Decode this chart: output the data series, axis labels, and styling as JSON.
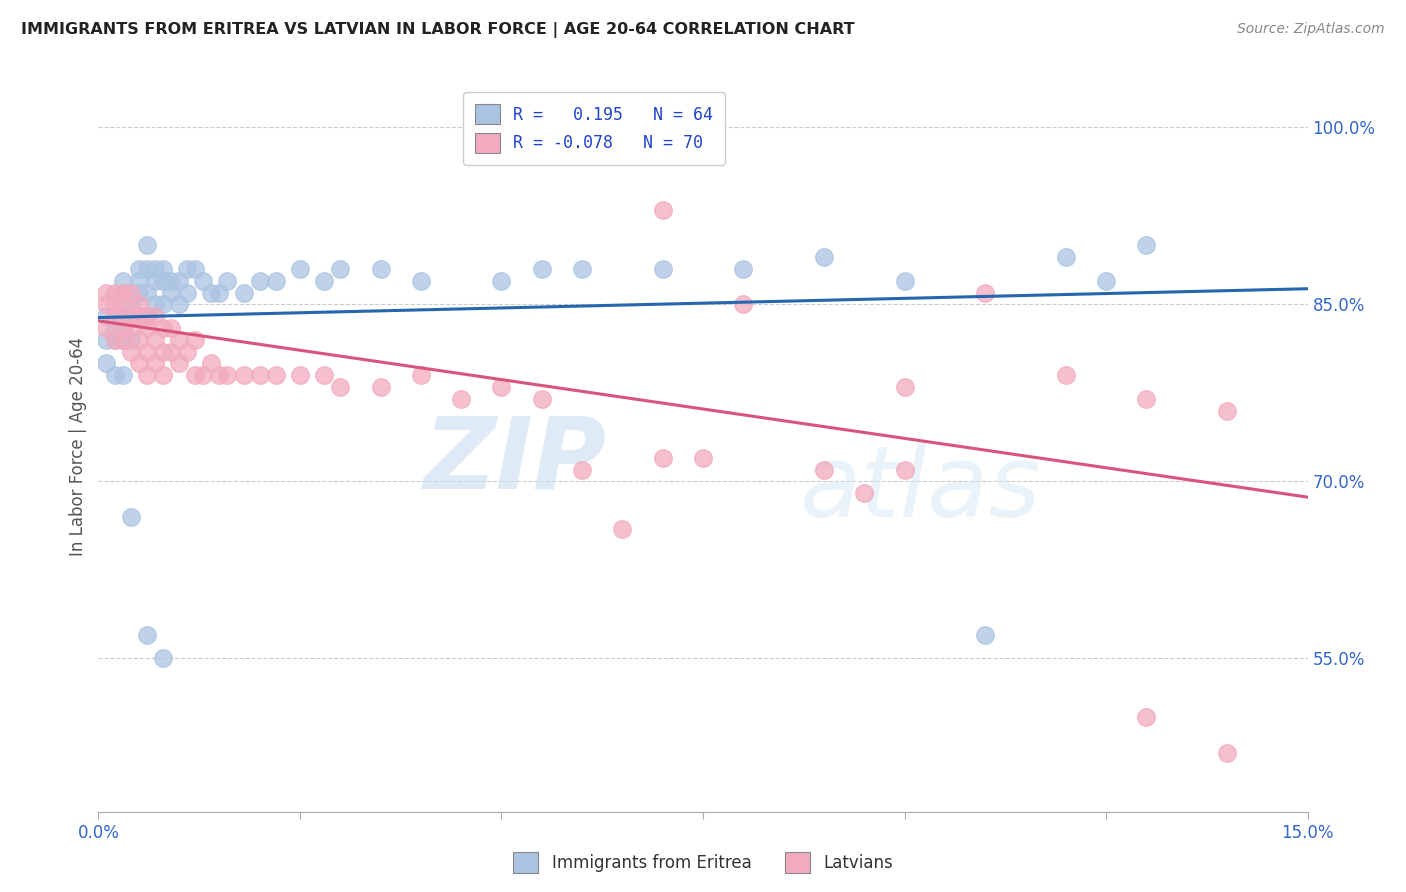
{
  "title": "IMMIGRANTS FROM ERITREA VS LATVIAN IN LABOR FORCE | AGE 20-64 CORRELATION CHART",
  "source": "Source: ZipAtlas.com",
  "ylabel": "In Labor Force | Age 20-64",
  "yticks_labels": [
    "100.0%",
    "85.0%",
    "70.0%",
    "55.0%"
  ],
  "ytick_vals": [
    1.0,
    0.85,
    0.7,
    0.55
  ],
  "xlim": [
    0.0,
    0.15
  ],
  "ylim": [
    0.42,
    1.04
  ],
  "R_eritrea": 0.195,
  "N_eritrea": 64,
  "R_latvian": -0.078,
  "N_latvian": 70,
  "color_eritrea": "#aac4e2",
  "color_latvian": "#f2aabe",
  "line_color_eritrea": "#2666b0",
  "line_color_latvian": "#d9547a",
  "watermark_zip": "ZIP",
  "watermark_atlas": "atlas",
  "legend_label_e": "R =   0.195   N = 64",
  "legend_label_l": "R = -0.078   N = 70",
  "bottom_label_e": "Immigrants from Eritrea",
  "bottom_label_l": "Latvians",
  "xtick_positions": [
    0.0,
    0.025,
    0.05,
    0.075,
    0.1,
    0.125,
    0.15
  ],
  "xtick_labels": [
    "0.0%",
    "",
    "",
    "",
    "",
    "",
    "15.0%"
  ],
  "eritrea_x": [
    0.001,
    0.001,
    0.002,
    0.002,
    0.002,
    0.003,
    0.003,
    0.003,
    0.003,
    0.003,
    0.004,
    0.004,
    0.004,
    0.004,
    0.005,
    0.005,
    0.005,
    0.005,
    0.006,
    0.006,
    0.006,
    0.006,
    0.007,
    0.007,
    0.007,
    0.008,
    0.008,
    0.008,
    0.009,
    0.009,
    0.01,
    0.01,
    0.011,
    0.011,
    0.012,
    0.013,
    0.014,
    0.015,
    0.016,
    0.018,
    0.02,
    0.022,
    0.025,
    0.028,
    0.03,
    0.035,
    0.04,
    0.05,
    0.055,
    0.06,
    0.07,
    0.08,
    0.09,
    0.1,
    0.11,
    0.12,
    0.13,
    0.125,
    0.001,
    0.002,
    0.003,
    0.004,
    0.006,
    0.008
  ],
  "eritrea_y": [
    0.84,
    0.82,
    0.84,
    0.83,
    0.82,
    0.87,
    0.86,
    0.84,
    0.83,
    0.82,
    0.86,
    0.85,
    0.84,
    0.82,
    0.88,
    0.87,
    0.86,
    0.84,
    0.9,
    0.88,
    0.86,
    0.84,
    0.88,
    0.87,
    0.85,
    0.88,
    0.87,
    0.85,
    0.87,
    0.86,
    0.87,
    0.85,
    0.88,
    0.86,
    0.88,
    0.87,
    0.86,
    0.86,
    0.87,
    0.86,
    0.87,
    0.87,
    0.88,
    0.87,
    0.88,
    0.88,
    0.87,
    0.87,
    0.88,
    0.88,
    0.88,
    0.88,
    0.89,
    0.87,
    0.57,
    0.89,
    0.9,
    0.87,
    0.8,
    0.79,
    0.79,
    0.67,
    0.57,
    0.55
  ],
  "latvian_x": [
    0.001,
    0.001,
    0.001,
    0.002,
    0.002,
    0.002,
    0.002,
    0.003,
    0.003,
    0.003,
    0.003,
    0.004,
    0.004,
    0.004,
    0.004,
    0.005,
    0.005,
    0.005,
    0.005,
    0.006,
    0.006,
    0.006,
    0.006,
    0.007,
    0.007,
    0.007,
    0.008,
    0.008,
    0.008,
    0.009,
    0.009,
    0.01,
    0.01,
    0.011,
    0.012,
    0.012,
    0.013,
    0.014,
    0.015,
    0.016,
    0.018,
    0.02,
    0.022,
    0.025,
    0.028,
    0.03,
    0.035,
    0.04,
    0.045,
    0.05,
    0.055,
    0.06,
    0.065,
    0.07,
    0.075,
    0.09,
    0.095,
    0.1,
    0.11,
    0.12,
    0.13,
    0.14,
    0.05,
    0.051,
    0.052,
    0.07,
    0.08,
    0.1,
    0.13,
    0.14
  ],
  "latvian_y": [
    0.86,
    0.85,
    0.83,
    0.86,
    0.85,
    0.84,
    0.82,
    0.86,
    0.85,
    0.83,
    0.82,
    0.86,
    0.84,
    0.83,
    0.81,
    0.85,
    0.84,
    0.82,
    0.8,
    0.84,
    0.83,
    0.81,
    0.79,
    0.84,
    0.82,
    0.8,
    0.83,
    0.81,
    0.79,
    0.83,
    0.81,
    0.82,
    0.8,
    0.81,
    0.82,
    0.79,
    0.79,
    0.8,
    0.79,
    0.79,
    0.79,
    0.79,
    0.79,
    0.79,
    0.79,
    0.78,
    0.78,
    0.79,
    0.77,
    0.78,
    0.77,
    0.71,
    0.66,
    0.72,
    0.72,
    0.71,
    0.69,
    0.71,
    0.86,
    0.79,
    0.77,
    0.76,
    1.0,
    1.0,
    1.0,
    0.93,
    0.85,
    0.78,
    0.5,
    0.47
  ]
}
